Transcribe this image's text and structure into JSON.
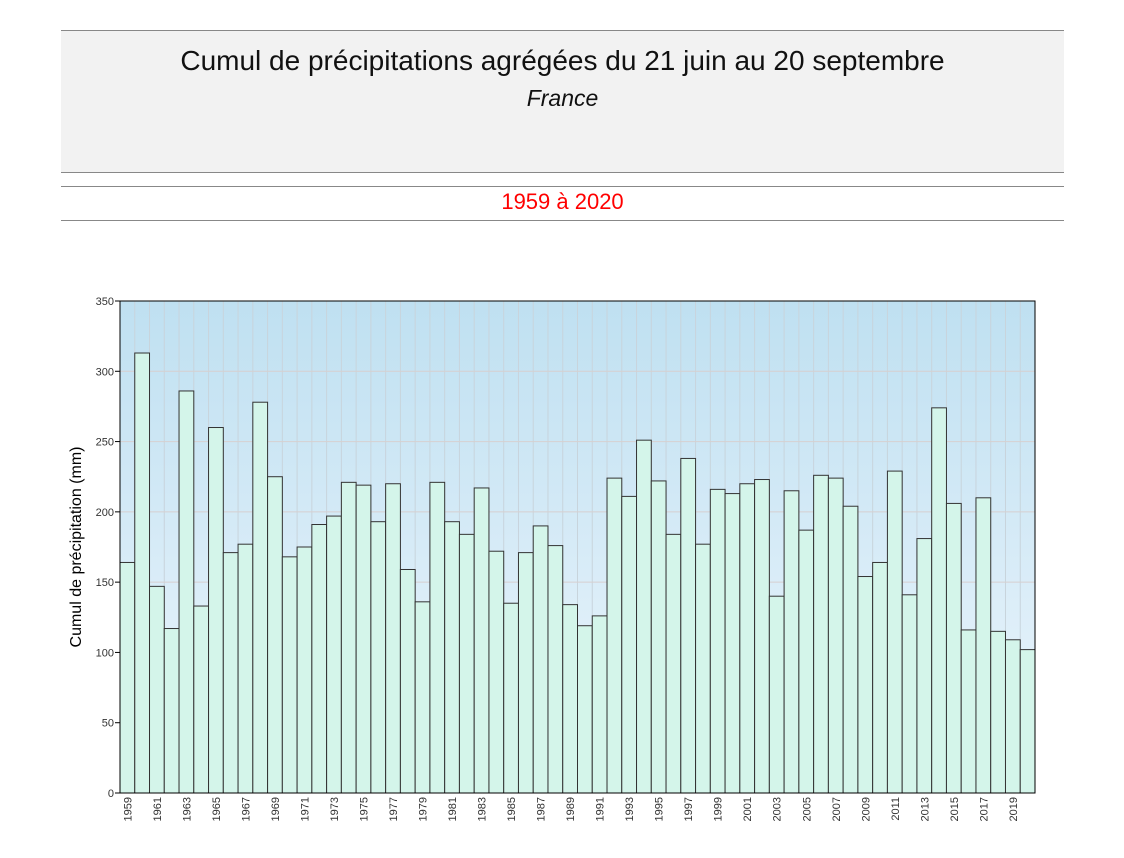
{
  "header": {
    "title": "Cumul de précipitations agrégées du 21 juin au 20 septembre",
    "subtitle": "France"
  },
  "period": {
    "label": "1959 à 2020",
    "color": "#ff0000"
  },
  "chart_data": {
    "type": "bar",
    "title": "Cumul de précipitations agrégées du 21 juin au 20 septembre",
    "xlabel": "",
    "ylabel": "Cumul de précipitation (mm)",
    "ylim": [
      0,
      350
    ],
    "yticks": [
      0,
      50,
      100,
      150,
      200,
      250,
      300,
      350
    ],
    "grid": true,
    "bar_color": "#d4f5ea",
    "bar_edge_color": "#333333",
    "background_gradient": [
      "#bfe0f1",
      "#eef6fd"
    ],
    "categories": [
      "1959",
      "1960",
      "1961",
      "1962",
      "1963",
      "1964",
      "1965",
      "1966",
      "1967",
      "1968",
      "1969",
      "1970",
      "1971",
      "1972",
      "1973",
      "1974",
      "1975",
      "1976",
      "1977",
      "1978",
      "1979",
      "1980",
      "1981",
      "1982",
      "1983",
      "1984",
      "1985",
      "1986",
      "1987",
      "1988",
      "1989",
      "1990",
      "1991",
      "1992",
      "1993",
      "1994",
      "1995",
      "1996",
      "1997",
      "1998",
      "1999",
      "2000",
      "2001",
      "2002",
      "2003",
      "2004",
      "2005",
      "2006",
      "2007",
      "2008",
      "2009",
      "2010",
      "2011",
      "2012",
      "2013",
      "2014",
      "2015",
      "2016",
      "2017",
      "2018",
      "2019",
      "2020"
    ],
    "values": [
      164,
      313,
      147,
      117,
      286,
      133,
      260,
      171,
      177,
      278,
      225,
      168,
      175,
      191,
      197,
      221,
      219,
      193,
      220,
      159,
      136,
      221,
      193,
      184,
      217,
      172,
      135,
      171,
      190,
      176,
      134,
      119,
      126,
      224,
      211,
      251,
      222,
      184,
      238,
      177,
      216,
      213,
      220,
      223,
      140,
      215,
      187,
      226,
      224,
      204,
      154,
      164,
      229,
      141,
      181,
      274,
      206,
      116,
      210,
      115,
      109,
      102
    ]
  }
}
